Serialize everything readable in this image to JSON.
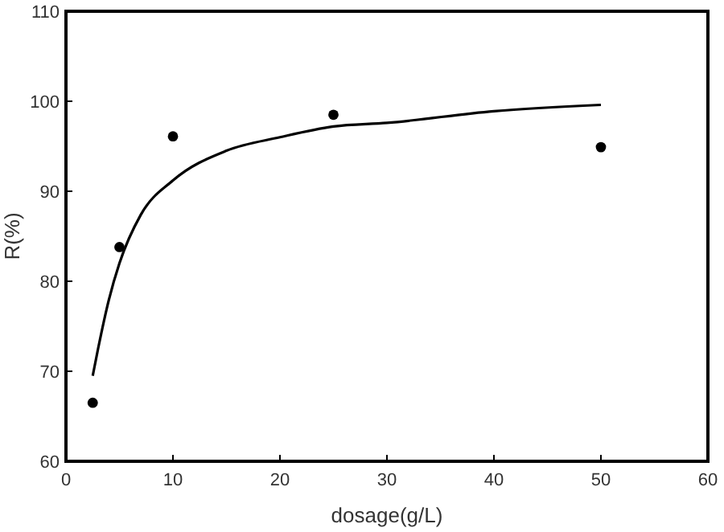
{
  "chart_data": {
    "type": "scatter",
    "xlabel": "dosage(g/L)",
    "ylabel": "R(%)",
    "xlim": [
      0,
      60
    ],
    "ylim": [
      60,
      110
    ],
    "xticks": [
      0,
      10,
      20,
      30,
      40,
      50,
      60
    ],
    "yticks": [
      60,
      70,
      80,
      90,
      100,
      110
    ],
    "grid": false,
    "series": [
      {
        "color": "#000000",
        "marker": "circle",
        "x": [
          2.5,
          5,
          10,
          25,
          50
        ],
        "values": [
          66.5,
          83.8,
          96.1,
          98.5,
          94.9
        ]
      },
      {
        "type": "line",
        "color": "#000000",
        "marker": "none",
        "x": [
          2.5,
          3,
          4,
          5,
          7,
          10,
          15,
          20,
          25,
          30,
          40,
          50
        ],
        "values": [
          69.5,
          72.5,
          77.9,
          82,
          87.4,
          91.2,
          94.5,
          96,
          97.2,
          97.6,
          98.9,
          99.6
        ]
      }
    ]
  }
}
